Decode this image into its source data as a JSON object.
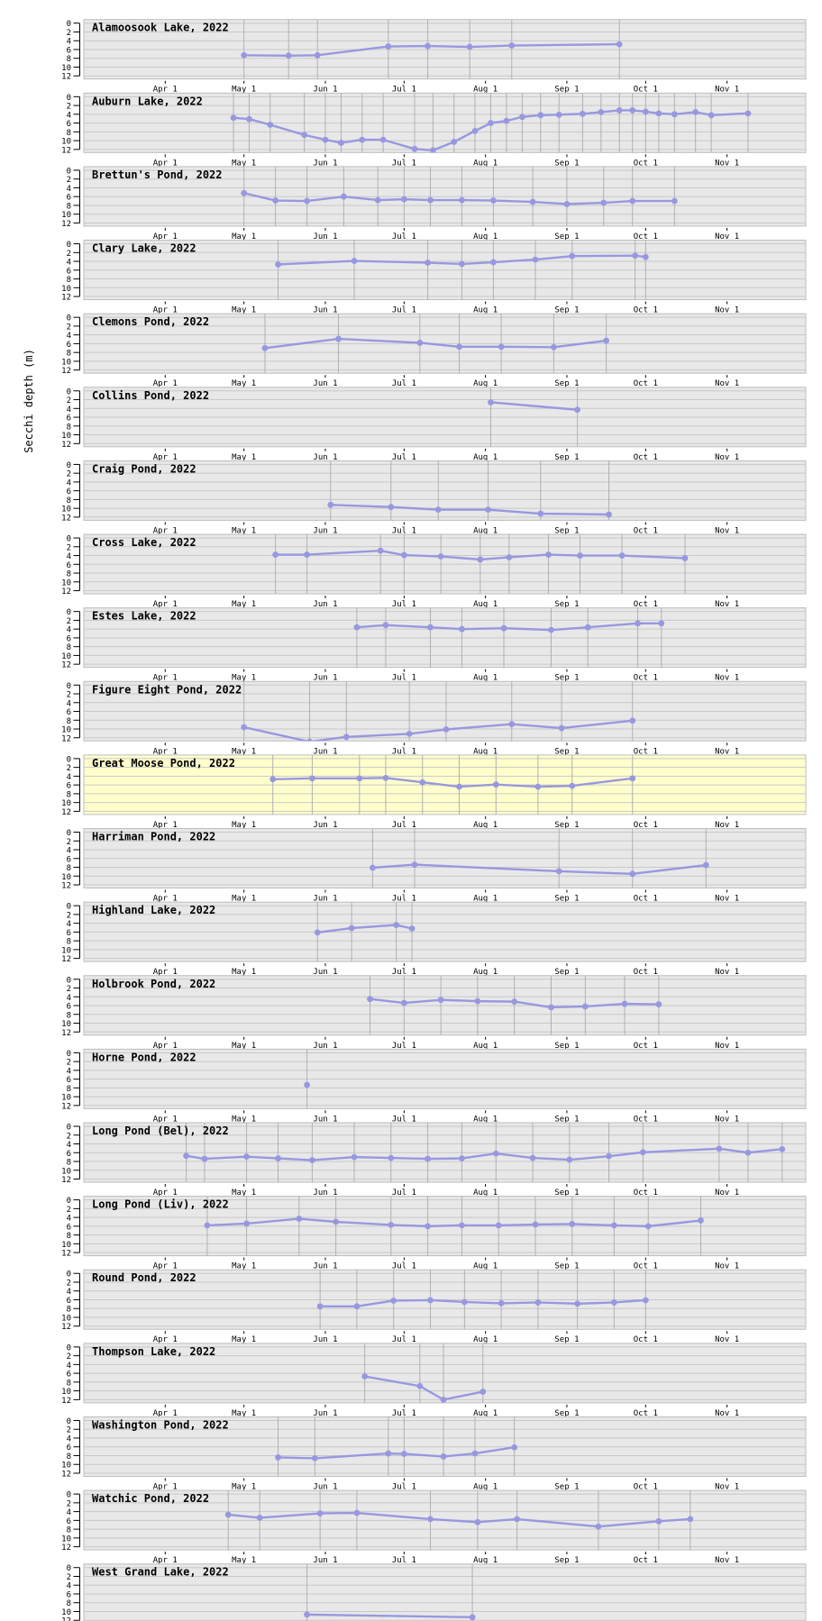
{
  "figure": {
    "y_axis_label": "Secchi depth (m)",
    "x_tick_labels": [
      "Apr 1",
      "May 1",
      "Jun 1",
      "Jul 1",
      "Aug 1",
      "Sep 1",
      "Oct 1",
      "Nov 1"
    ],
    "y_tick_labels": [
      "0",
      "2",
      "4",
      "6",
      "8",
      "10",
      "12"
    ]
  },
  "colors": {
    "series": "#9898e0",
    "panel_bg": "#e8e8e8",
    "highlight_bg": "#ffffcc",
    "grid_horizontal": "#c8c8c8",
    "grid_vertical": "#b0b0b0",
    "panel_border": "#bdbdbd",
    "text": "#000000",
    "page_bg": "#ffffff"
  },
  "chart_data": [
    {
      "type": "line",
      "title": "Alamoosook Lake, 2022",
      "highlighted": false,
      "ylabel": "Secchi depth (m)",
      "ylim": [
        0,
        12
      ],
      "x_range": [
        "Mar 1",
        "Dec 1"
      ],
      "dates": [
        "05-01",
        "05-18",
        "05-29",
        "06-25",
        "07-10",
        "07-26",
        "08-11",
        "09-21"
      ],
      "values": [
        7.3,
        7.4,
        7.3,
        5.3,
        5.2,
        5.4,
        5.1,
        4.8
      ]
    },
    {
      "type": "line",
      "title": "Auburn Lake, 2022",
      "highlighted": false,
      "ylim": [
        0,
        12
      ],
      "dates": [
        "04-27",
        "05-03",
        "05-11",
        "05-24",
        "06-01",
        "06-07",
        "06-15",
        "06-23",
        "07-05",
        "07-12",
        "07-20",
        "07-28",
        "08-03",
        "08-09",
        "08-15",
        "08-22",
        "08-29",
        "09-07",
        "09-14",
        "09-21",
        "09-26",
        "10-01",
        "10-06",
        "10-12",
        "10-20",
        "10-26",
        "11-09"
      ],
      "values": [
        4.8,
        5.1,
        6.4,
        8.7,
        9.8,
        10.5,
        9.8,
        9.8,
        11.9,
        12.2,
        10.3,
        7.8,
        6.0,
        5.5,
        4.6,
        4.2,
        4.1,
        3.9,
        3.5,
        3.1,
        3.1,
        3.4,
        3.8,
        4.0,
        3.5,
        4.2,
        3.8
      ]
    },
    {
      "type": "line",
      "title": "Brettun's Pond, 2022",
      "highlighted": false,
      "ylim": [
        0,
        12
      ],
      "dates": [
        "05-01",
        "05-13",
        "05-25",
        "06-08",
        "06-21",
        "07-01",
        "07-11",
        "07-23",
        "08-04",
        "08-19",
        "09-01",
        "09-15",
        "09-26",
        "10-12"
      ],
      "values": [
        5.2,
        6.9,
        7.0,
        6.0,
        6.8,
        6.6,
        6.8,
        6.8,
        6.9,
        7.2,
        7.7,
        7.4,
        7.0,
        7.0
      ]
    },
    {
      "type": "line",
      "title": "Clary Lake, 2022",
      "highlighted": false,
      "ylim": [
        0,
        12
      ],
      "dates": [
        "05-14",
        "06-12",
        "07-10",
        "07-23",
        "08-04",
        "08-20",
        "09-03",
        "09-27",
        "10-01"
      ],
      "values": [
        4.7,
        3.9,
        4.3,
        4.6,
        4.2,
        3.6,
        2.8,
        2.7,
        3.0
      ]
    },
    {
      "type": "line",
      "title": "Clemons Pond, 2022",
      "highlighted": false,
      "ylim": [
        0,
        12
      ],
      "dates": [
        "05-09",
        "06-06",
        "07-07",
        "07-22",
        "08-07",
        "08-27",
        "09-16"
      ],
      "values": [
        7.0,
        4.9,
        5.8,
        6.7,
        6.7,
        6.8,
        5.3
      ]
    },
    {
      "type": "line",
      "title": "Collins Pond, 2022",
      "highlighted": false,
      "ylim": [
        0,
        12
      ],
      "dates": [
        "08-03",
        "09-05"
      ],
      "values": [
        2.6,
        4.3
      ]
    },
    {
      "type": "line",
      "title": "Craig Pond, 2022",
      "highlighted": false,
      "ylim": [
        0,
        12
      ],
      "dates": [
        "06-03",
        "06-26",
        "07-14",
        "08-02",
        "08-22",
        "09-17"
      ],
      "values": [
        9.2,
        9.7,
        10.3,
        10.3,
        11.2,
        11.4
      ]
    },
    {
      "type": "line",
      "title": "Cross Lake, 2022",
      "highlighted": false,
      "ylim": [
        0,
        12
      ],
      "dates": [
        "05-13",
        "05-25",
        "06-22",
        "07-01",
        "07-15",
        "07-30",
        "08-10",
        "08-25",
        "09-06",
        "09-22",
        "10-16"
      ],
      "values": [
        3.8,
        3.8,
        2.9,
        3.9,
        4.2,
        4.9,
        4.4,
        3.8,
        4.0,
        4.0,
        4.6
      ]
    },
    {
      "type": "line",
      "title": "Estes Lake, 2022",
      "highlighted": false,
      "ylim": [
        0,
        12
      ],
      "dates": [
        "06-13",
        "06-24",
        "07-11",
        "07-23",
        "08-08",
        "08-26",
        "09-09",
        "09-28",
        "10-07"
      ],
      "values": [
        3.6,
        3.1,
        3.6,
        4.0,
        3.8,
        4.2,
        3.6,
        2.7,
        2.7
      ]
    },
    {
      "type": "line",
      "title": "Figure Eight Pond, 2022",
      "highlighted": false,
      "ylim": [
        0,
        12
      ],
      "dates": [
        "05-01",
        "05-26",
        "06-09",
        "07-03",
        "07-17",
        "08-11",
        "08-30",
        "09-26"
      ],
      "values": [
        9.6,
        12.9,
        11.8,
        11.1,
        10.1,
        8.9,
        9.8,
        8.1
      ]
    },
    {
      "type": "line",
      "title": "Great Moose Pond, 2022",
      "highlighted": true,
      "ylim": [
        0,
        12
      ],
      "dates": [
        "05-12",
        "05-27",
        "06-14",
        "06-24",
        "07-08",
        "07-22",
        "08-05",
        "08-21",
        "09-03",
        "09-26"
      ],
      "values": [
        4.7,
        4.5,
        4.5,
        4.4,
        5.4,
        6.4,
        5.9,
        6.4,
        6.2,
        4.5
      ]
    },
    {
      "type": "line",
      "title": "Harriman Pond, 2022",
      "highlighted": false,
      "ylim": [
        0,
        12
      ],
      "dates": [
        "06-19",
        "07-05",
        "08-29",
        "09-26",
        "10-24"
      ],
      "values": [
        8.1,
        7.4,
        8.9,
        9.5,
        7.5
      ]
    },
    {
      "type": "line",
      "title": "Highland Lake, 2022",
      "highlighted": false,
      "ylim": [
        0,
        12
      ],
      "dates": [
        "05-29",
        "06-11",
        "06-28",
        "07-04"
      ],
      "values": [
        6.1,
        5.1,
        4.4,
        5.2
      ]
    },
    {
      "type": "line",
      "title": "Holbrook Pond, 2022",
      "highlighted": false,
      "ylim": [
        0,
        12
      ],
      "dates": [
        "06-18",
        "07-01",
        "07-15",
        "07-29",
        "08-12",
        "08-26",
        "09-08",
        "09-23",
        "10-06"
      ],
      "values": [
        4.5,
        5.4,
        4.7,
        5.0,
        5.1,
        6.4,
        6.2,
        5.6,
        5.7
      ]
    },
    {
      "type": "line",
      "title": "Horne Pond, 2022",
      "highlighted": false,
      "ylim": [
        0,
        12
      ],
      "dates": [
        "05-25"
      ],
      "values": [
        7.3
      ]
    },
    {
      "type": "line",
      "title": "Long Pond (Bel), 2022",
      "highlighted": false,
      "ylim": [
        0,
        12
      ],
      "dates": [
        "04-09",
        "04-16",
        "05-02",
        "05-14",
        "05-27",
        "06-12",
        "06-26",
        "07-10",
        "07-23",
        "08-05",
        "08-19",
        "09-02",
        "09-17",
        "09-30",
        "10-29",
        "11-09",
        "11-22"
      ],
      "values": [
        6.7,
        7.4,
        6.9,
        7.3,
        7.7,
        7.0,
        7.2,
        7.4,
        7.3,
        6.2,
        7.2,
        7.6,
        6.8,
        5.9,
        5.1,
        6.0,
        5.2
      ]
    },
    {
      "type": "line",
      "title": "Long Pond (Liv), 2022",
      "highlighted": false,
      "ylim": [
        0,
        12
      ],
      "dates": [
        "04-17",
        "05-02",
        "05-22",
        "06-05",
        "06-26",
        "07-10",
        "07-23",
        "08-06",
        "08-20",
        "09-03",
        "09-19",
        "10-02",
        "10-22"
      ],
      "values": [
        5.8,
        5.4,
        4.3,
        5.0,
        5.7,
        6.0,
        5.8,
        5.8,
        5.6,
        5.5,
        5.8,
        6.0,
        4.7
      ]
    },
    {
      "type": "line",
      "title": "Round Pond, 2022",
      "highlighted": false,
      "ylim": [
        0,
        12
      ],
      "dates": [
        "05-30",
        "06-13",
        "06-27",
        "07-11",
        "07-24",
        "08-07",
        "08-21",
        "09-05",
        "09-19",
        "10-01"
      ],
      "values": [
        7.5,
        7.5,
        6.2,
        6.1,
        6.5,
        6.8,
        6.6,
        6.9,
        6.6,
        6.1
      ]
    },
    {
      "type": "line",
      "title": "Thompson Lake, 2022",
      "highlighted": false,
      "ylim": [
        0,
        12
      ],
      "dates": [
        "06-16",
        "07-07",
        "07-16",
        "07-31"
      ],
      "values": [
        6.7,
        8.9,
        12.0,
        10.2
      ]
    },
    {
      "type": "line",
      "title": "Washington Pond, 2022",
      "highlighted": false,
      "ylim": [
        0,
        12
      ],
      "dates": [
        "05-14",
        "05-28",
        "06-25",
        "07-01",
        "07-16",
        "07-28",
        "08-12"
      ],
      "values": [
        8.4,
        8.6,
        7.5,
        7.6,
        8.2,
        7.5,
        6.1
      ]
    },
    {
      "type": "line",
      "title": "Watchic Pond, 2022",
      "highlighted": false,
      "ylim": [
        0,
        12
      ],
      "dates": [
        "04-25",
        "05-07",
        "05-30",
        "06-13",
        "07-11",
        "07-29",
        "08-13",
        "09-13",
        "10-06",
        "10-18"
      ],
      "values": [
        4.7,
        5.4,
        4.4,
        4.3,
        5.7,
        6.4,
        5.7,
        7.4,
        6.2,
        5.7
      ]
    },
    {
      "type": "line",
      "title": "West Grand Lake, 2022",
      "highlighted": false,
      "ylim": [
        0,
        12
      ],
      "dates": [
        "05-25",
        "07-27"
      ],
      "values": [
        10.7,
        11.3
      ]
    }
  ]
}
